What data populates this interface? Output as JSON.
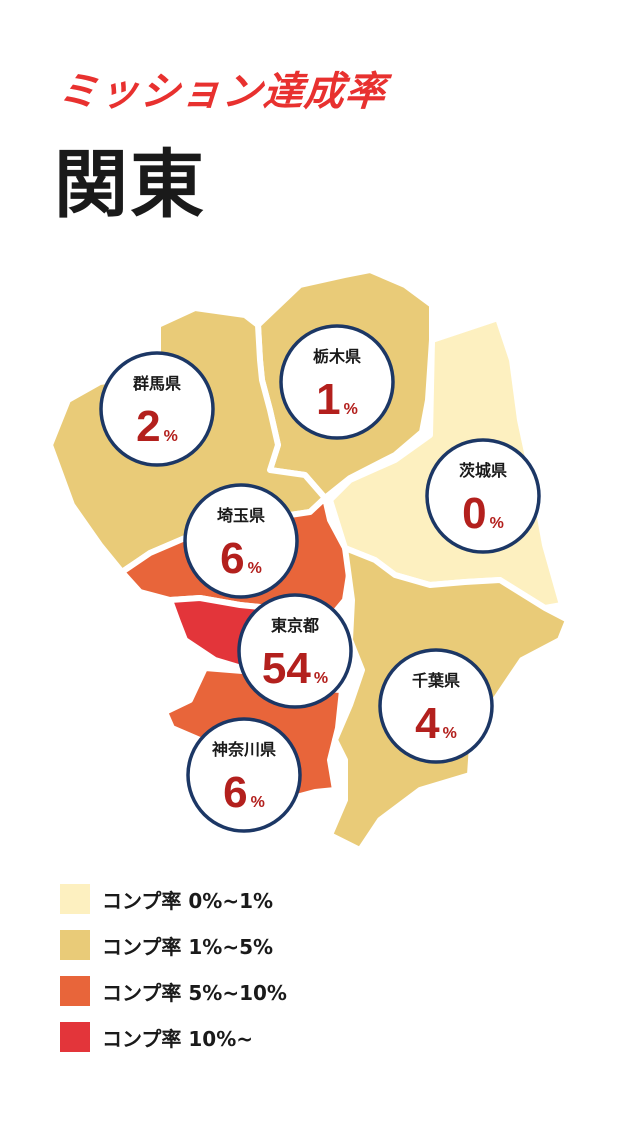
{
  "header": {
    "subtitle": "ミッション達成率",
    "title": "関東"
  },
  "prefectures": [
    {
      "id": "gunma",
      "name": "群馬県",
      "value": "2",
      "unit": "%",
      "color": "#e9cb78"
    },
    {
      "id": "tochigi",
      "name": "栃木県",
      "value": "1",
      "unit": "%",
      "color": "#e9cb78"
    },
    {
      "id": "ibaraki",
      "name": "茨城県",
      "value": "0",
      "unit": "%",
      "color": "#fdf0c0"
    },
    {
      "id": "saitama",
      "name": "埼玉県",
      "value": "6",
      "unit": "%",
      "color": "#e8653a"
    },
    {
      "id": "tokyo",
      "name": "東京都",
      "value": "54",
      "unit": "%",
      "color": "#e3353a"
    },
    {
      "id": "chiba",
      "name": "千葉県",
      "value": "4",
      "unit": "%",
      "color": "#e9cb78"
    },
    {
      "id": "kanagawa",
      "name": "神奈川県",
      "value": "6",
      "unit": "%",
      "color": "#e8653a"
    }
  ],
  "legend": [
    {
      "label": "コンプ率 0%~1%",
      "color": "#fdf0c0"
    },
    {
      "label": "コンプ率 1%~5%",
      "color": "#e9cb78"
    },
    {
      "label": "コンプ率 5%~10%",
      "color": "#e8653a"
    },
    {
      "label": "コンプ率 10%~",
      "color": "#e3353a"
    }
  ],
  "colors": {
    "circle_border": "#1c3765",
    "percent_text": "#b3201d",
    "accent": "#e8312f"
  }
}
